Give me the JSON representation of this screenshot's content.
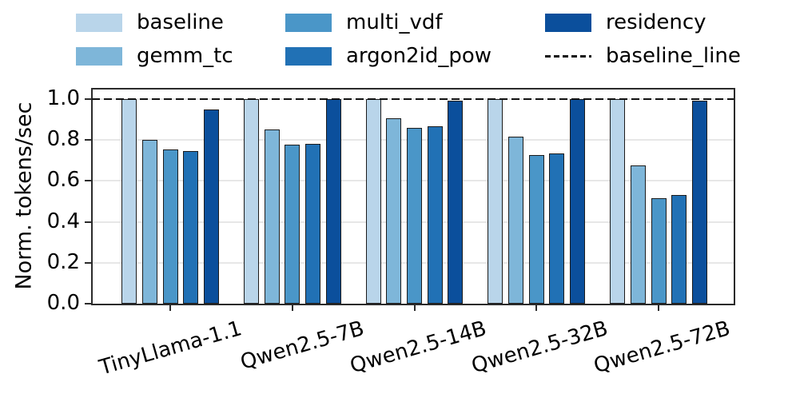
{
  "figure": {
    "background": "#ffffff"
  },
  "legend": {
    "position": "top, 3 columns, no frame",
    "items": [
      {
        "label": "baseline",
        "marker": "patch",
        "color": "#b9d5ea"
      },
      {
        "label": "gemm_tc",
        "marker": "patch",
        "color": "#7eb6d9"
      },
      {
        "label": "multi_vdf",
        "marker": "patch",
        "color": "#4a96c8"
      },
      {
        "label": "argon2id_pow",
        "marker": "patch",
        "color": "#2171b5"
      },
      {
        "label": "residency",
        "marker": "patch",
        "color": "#0b4f9c"
      },
      {
        "label": "baseline_line",
        "marker": "dashed-line",
        "color": "#111111"
      }
    ]
  },
  "chart_data": {
    "type": "bar",
    "title": "",
    "xlabel": "",
    "ylabel": "Norm. tokens/sec",
    "ylim": [
      0,
      1.05
    ],
    "yticks": [
      0.0,
      0.2,
      0.4,
      0.6,
      0.8,
      1.0
    ],
    "grid": "horizontal light gray",
    "legend_position": "top",
    "categories": [
      "TinyLlama-1.1",
      "Qwen2.5-7B",
      "Qwen2.5-14B",
      "Qwen2.5-32B",
      "Qwen2.5-72B"
    ],
    "series": [
      {
        "name": "baseline",
        "color": "#b9d5ea",
        "values": [
          1.0,
          1.0,
          1.0,
          1.0,
          1.0
        ]
      },
      {
        "name": "gemm_tc",
        "color": "#7eb6d9",
        "values": [
          0.8,
          0.85,
          0.905,
          0.815,
          0.675
        ]
      },
      {
        "name": "multi_vdf",
        "color": "#4a96c8",
        "values": [
          0.755,
          0.775,
          0.86,
          0.725,
          0.515
        ]
      },
      {
        "name": "argon2id_pow",
        "color": "#2171b5",
        "values": [
          0.745,
          0.78,
          0.865,
          0.735,
          0.53
        ]
      },
      {
        "name": "residency",
        "color": "#0b4f9c",
        "values": [
          0.95,
          1.0,
          0.99,
          1.0,
          0.99
        ]
      }
    ],
    "reference_line": {
      "name": "baseline_line",
      "y": 1.0,
      "style": "dashed",
      "color": "#111111"
    },
    "bar_edge_color": "#1c1c1c"
  }
}
